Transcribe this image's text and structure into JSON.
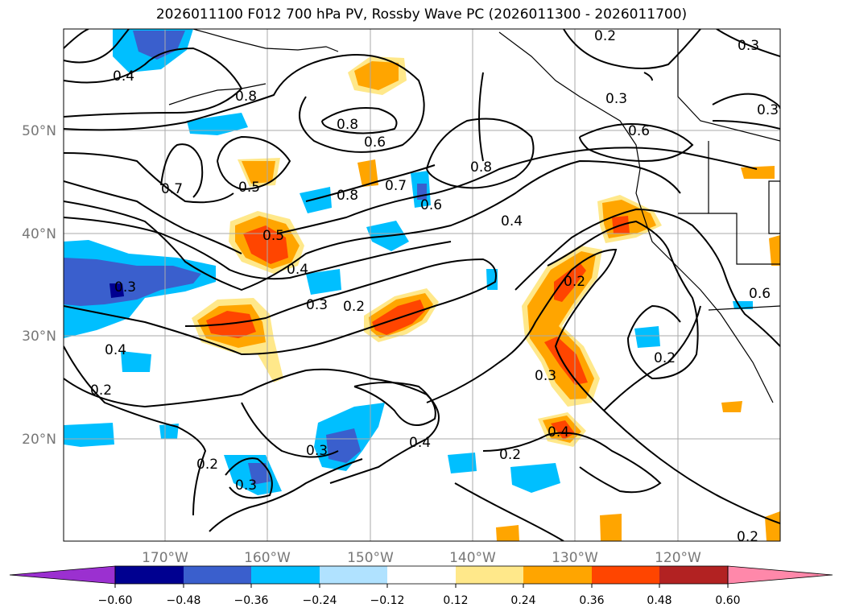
{
  "title": "2026011100 F012 700 hPa PV, Rossby Wave PC (2026011300 - 2026011700)",
  "lat_labels": [
    "50°N",
    "40°N",
    "30°N",
    "20°N"
  ],
  "lon_labels": [
    "170°W",
    "160°W",
    "150°W",
    "140°W",
    "130°W",
    "120°W"
  ],
  "contour_labels": [
    "0.4",
    "0.8",
    "0.8",
    "0.6",
    "0.7",
    "0.5",
    "0.8",
    "0.7",
    "0.6",
    "0.8",
    "0.4",
    "0.5",
    "0.4",
    "0.3",
    "0.2",
    "0.3",
    "0.2",
    "0.3",
    "0.4",
    "0.2",
    "0.2",
    "0.4",
    "0.2",
    "0.3",
    "0.2",
    "0.3",
    "0.3",
    "0.6",
    "0.3",
    "0.4",
    "0.3",
    "0.6",
    "0.2",
    "0.2"
  ],
  "colorbar": {
    "colors": [
      "#9b30d0",
      "#000090",
      "#3a5fcd",
      "#00bfff",
      "#b0e2ff",
      "#ffffff",
      "#ffe88a",
      "#ffa500",
      "#ff4500",
      "#b22222",
      "#ff88aa"
    ],
    "ticks": [
      "−0.60",
      "−0.48",
      "−0.36",
      "−0.24",
      "−0.12",
      "0.12",
      "0.24",
      "0.36",
      "0.48",
      "0.60"
    ]
  }
}
